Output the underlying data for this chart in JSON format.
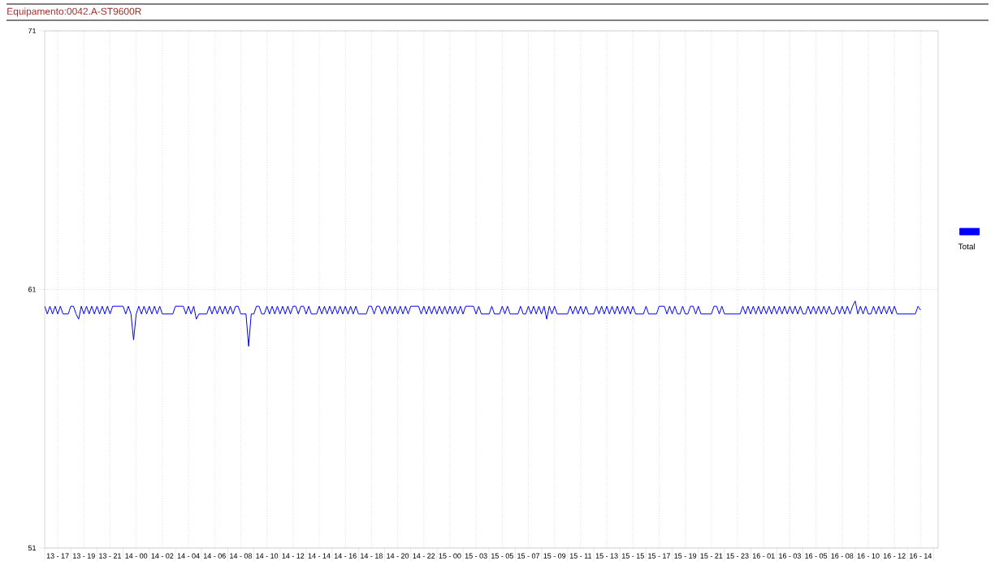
{
  "chart_data": {
    "type": "line",
    "title": "Equipamento:0042.A-ST9600R",
    "categories": [
      null,
      null,
      null,
      null,
      null,
      "13 - 17",
      null,
      null,
      null,
      null,
      null,
      null,
      null,
      null,
      null,
      "13 - 19",
      null,
      null,
      null,
      null,
      null,
      null,
      null,
      null,
      null,
      "13 - 21",
      null,
      null,
      null,
      null,
      null,
      null,
      null,
      null,
      null,
      "14 - 00",
      null,
      null,
      null,
      null,
      null,
      null,
      null,
      null,
      null,
      "14 - 02",
      null,
      null,
      null,
      null,
      null,
      null,
      null,
      null,
      null,
      "14 - 04",
      null,
      null,
      null,
      null,
      null,
      null,
      null,
      null,
      null,
      "14 - 06",
      null,
      null,
      null,
      null,
      null,
      null,
      null,
      null,
      null,
      "14 - 08",
      null,
      null,
      null,
      null,
      null,
      null,
      null,
      null,
      null,
      "14 - 10",
      null,
      null,
      null,
      null,
      null,
      null,
      null,
      null,
      null,
      "14 - 12",
      null,
      null,
      null,
      null,
      null,
      null,
      null,
      null,
      null,
      "14 - 14",
      null,
      null,
      null,
      null,
      null,
      null,
      null,
      null,
      null,
      "14 - 16",
      null,
      null,
      null,
      null,
      null,
      null,
      null,
      null,
      null,
      "14 - 18",
      null,
      null,
      null,
      null,
      null,
      null,
      null,
      null,
      null,
      "14 - 20",
      null,
      null,
      null,
      null,
      null,
      null,
      null,
      null,
      null,
      "14 - 22",
      null,
      null,
      null,
      null,
      null,
      null,
      null,
      null,
      null,
      "15 - 00",
      null,
      null,
      null,
      null,
      null,
      null,
      null,
      null,
      null,
      "15 - 03",
      null,
      null,
      null,
      null,
      null,
      null,
      null,
      null,
      null,
      "15 - 05",
      null,
      null,
      null,
      null,
      null,
      null,
      null,
      null,
      null,
      "15 - 07",
      null,
      null,
      null,
      null,
      null,
      null,
      null,
      null,
      null,
      "15 - 09",
      null,
      null,
      null,
      null,
      null,
      null,
      null,
      null,
      null,
      "15 - 11",
      null,
      null,
      null,
      null,
      null,
      null,
      null,
      null,
      null,
      "15 - 13",
      null,
      null,
      null,
      null,
      null,
      null,
      null,
      null,
      null,
      "15 - 15",
      null,
      null,
      null,
      null,
      null,
      null,
      null,
      null,
      null,
      "15 - 17",
      null,
      null,
      null,
      null,
      null,
      null,
      null,
      null,
      null,
      "15 - 19",
      null,
      null,
      null,
      null,
      null,
      null,
      null,
      null,
      null,
      "15 - 21",
      null,
      null,
      null,
      null,
      null,
      null,
      null,
      null,
      null,
      "15 - 23",
      null,
      null,
      null,
      null,
      null,
      null,
      null,
      null,
      null,
      "16 - 01",
      null,
      null,
      null,
      null,
      null,
      null,
      null,
      null,
      null,
      "16 - 03",
      null,
      null,
      null,
      null,
      null,
      null,
      null,
      null,
      null,
      "16 - 05",
      null,
      null,
      null,
      null,
      null,
      null,
      null,
      null,
      null,
      "16 - 08",
      null,
      null,
      null,
      null,
      null,
      null,
      null,
      null,
      null,
      "16 - 10",
      null,
      null,
      null,
      null,
      null,
      null,
      null,
      null,
      null,
      "16 - 12",
      null,
      null,
      null,
      null,
      null,
      null,
      null,
      null,
      null,
      "16 - 14"
    ],
    "ylim": [
      51,
      71
    ],
    "yticks": [
      51,
      61,
      71
    ],
    "grid": true,
    "legend": "right",
    "series": [
      {
        "name": "Total",
        "color": "#0000ff",
        "values": [
          60.35,
          60.05,
          60.35,
          60.05,
          60.35,
          60.05,
          60.35,
          60.05,
          60.05,
          60.05,
          60.35,
          60.35,
          60.05,
          59.85,
          60.35,
          60.05,
          60.35,
          60.05,
          60.35,
          60.05,
          60.35,
          60.05,
          60.35,
          60.05,
          60.35,
          60.05,
          60.35,
          60.35,
          60.35,
          60.35,
          60.35,
          60.05,
          60.35,
          60.05,
          59.05,
          60.05,
          60.35,
          60.05,
          60.35,
          60.05,
          60.35,
          60.05,
          60.35,
          60.05,
          60.35,
          60.05,
          60.05,
          60.05,
          60.05,
          60.05,
          60.35,
          60.35,
          60.35,
          60.35,
          60.05,
          60.35,
          60.05,
          60.35,
          59.85,
          60.05,
          60.05,
          60.05,
          60.05,
          60.35,
          60.05,
          60.35,
          60.05,
          60.35,
          60.05,
          60.35,
          60.05,
          60.35,
          60.05,
          60.35,
          60.35,
          60.05,
          60.05,
          60.05,
          58.8,
          60.05,
          60.05,
          60.35,
          60.35,
          60.05,
          60.05,
          60.35,
          60.05,
          60.35,
          60.05,
          60.35,
          60.05,
          60.35,
          60.05,
          60.35,
          60.05,
          60.35,
          60.35,
          60.05,
          60.35,
          60.35,
          60.05,
          60.35,
          60.05,
          60.05,
          60.05,
          60.35,
          60.05,
          60.35,
          60.05,
          60.35,
          60.05,
          60.35,
          60.05,
          60.35,
          60.05,
          60.35,
          60.05,
          60.35,
          60.05,
          60.35,
          60.05,
          60.05,
          60.05,
          60.05,
          60.35,
          60.35,
          60.05,
          60.35,
          60.35,
          60.05,
          60.35,
          60.05,
          60.35,
          60.05,
          60.35,
          60.05,
          60.35,
          60.05,
          60.35,
          60.05,
          60.35,
          60.35,
          60.35,
          60.35,
          60.05,
          60.35,
          60.05,
          60.35,
          60.05,
          60.35,
          60.05,
          60.35,
          60.05,
          60.35,
          60.05,
          60.35,
          60.05,
          60.35,
          60.05,
          60.35,
          60.05,
          60.35,
          60.35,
          60.35,
          60.35,
          60.05,
          60.35,
          60.05,
          60.05,
          60.05,
          60.05,
          60.35,
          60.05,
          60.05,
          60.05,
          60.35,
          60.05,
          60.35,
          60.05,
          60.05,
          60.05,
          60.05,
          60.35,
          60.05,
          60.05,
          60.35,
          60.05,
          60.35,
          60.05,
          60.35,
          60.05,
          60.35,
          59.85,
          60.35,
          60.05,
          60.35,
          60.05,
          60.05,
          60.05,
          60.05,
          60.05,
          60.35,
          60.05,
          60.35,
          60.05,
          60.35,
          60.05,
          60.35,
          60.05,
          60.05,
          60.05,
          60.35,
          60.05,
          60.35,
          60.05,
          60.35,
          60.05,
          60.35,
          60.05,
          60.35,
          60.05,
          60.35,
          60.05,
          60.35,
          60.05,
          60.35,
          60.05,
          60.05,
          60.05,
          60.05,
          60.35,
          60.05,
          60.05,
          60.05,
          60.05,
          60.35,
          60.35,
          60.35,
          60.05,
          60.35,
          60.05,
          60.35,
          60.05,
          60.05,
          60.35,
          60.05,
          60.05,
          60.35,
          60.35,
          60.05,
          60.35,
          60.05,
          60.05,
          60.05,
          60.05,
          60.05,
          60.35,
          60.35,
          60.05,
          60.35,
          60.05,
          60.05,
          60.05,
          60.05,
          60.05,
          60.05,
          60.05,
          60.35,
          60.05,
          60.35,
          60.05,
          60.35,
          60.05,
          60.35,
          60.05,
          60.35,
          60.05,
          60.35,
          60.05,
          60.35,
          60.05,
          60.35,
          60.05,
          60.35,
          60.05,
          60.35,
          60.05,
          60.35,
          60.05,
          60.35,
          60.05,
          60.05,
          60.35,
          60.05,
          60.35,
          60.05,
          60.35,
          60.05,
          60.35,
          60.05,
          60.35,
          60.05,
          60.05,
          60.35,
          60.05,
          60.35,
          60.05,
          60.35,
          60.05,
          60.35,
          60.55,
          60.05,
          60.35,
          60.05,
          60.35,
          60.05,
          60.05,
          60.35,
          60.05,
          60.35,
          60.05,
          60.35,
          60.05,
          60.35,
          60.05,
          60.35,
          60.05,
          60.05,
          60.05,
          60.05,
          60.05,
          60.05,
          60.05,
          60.05,
          60.35,
          60.2
        ]
      }
    ]
  }
}
